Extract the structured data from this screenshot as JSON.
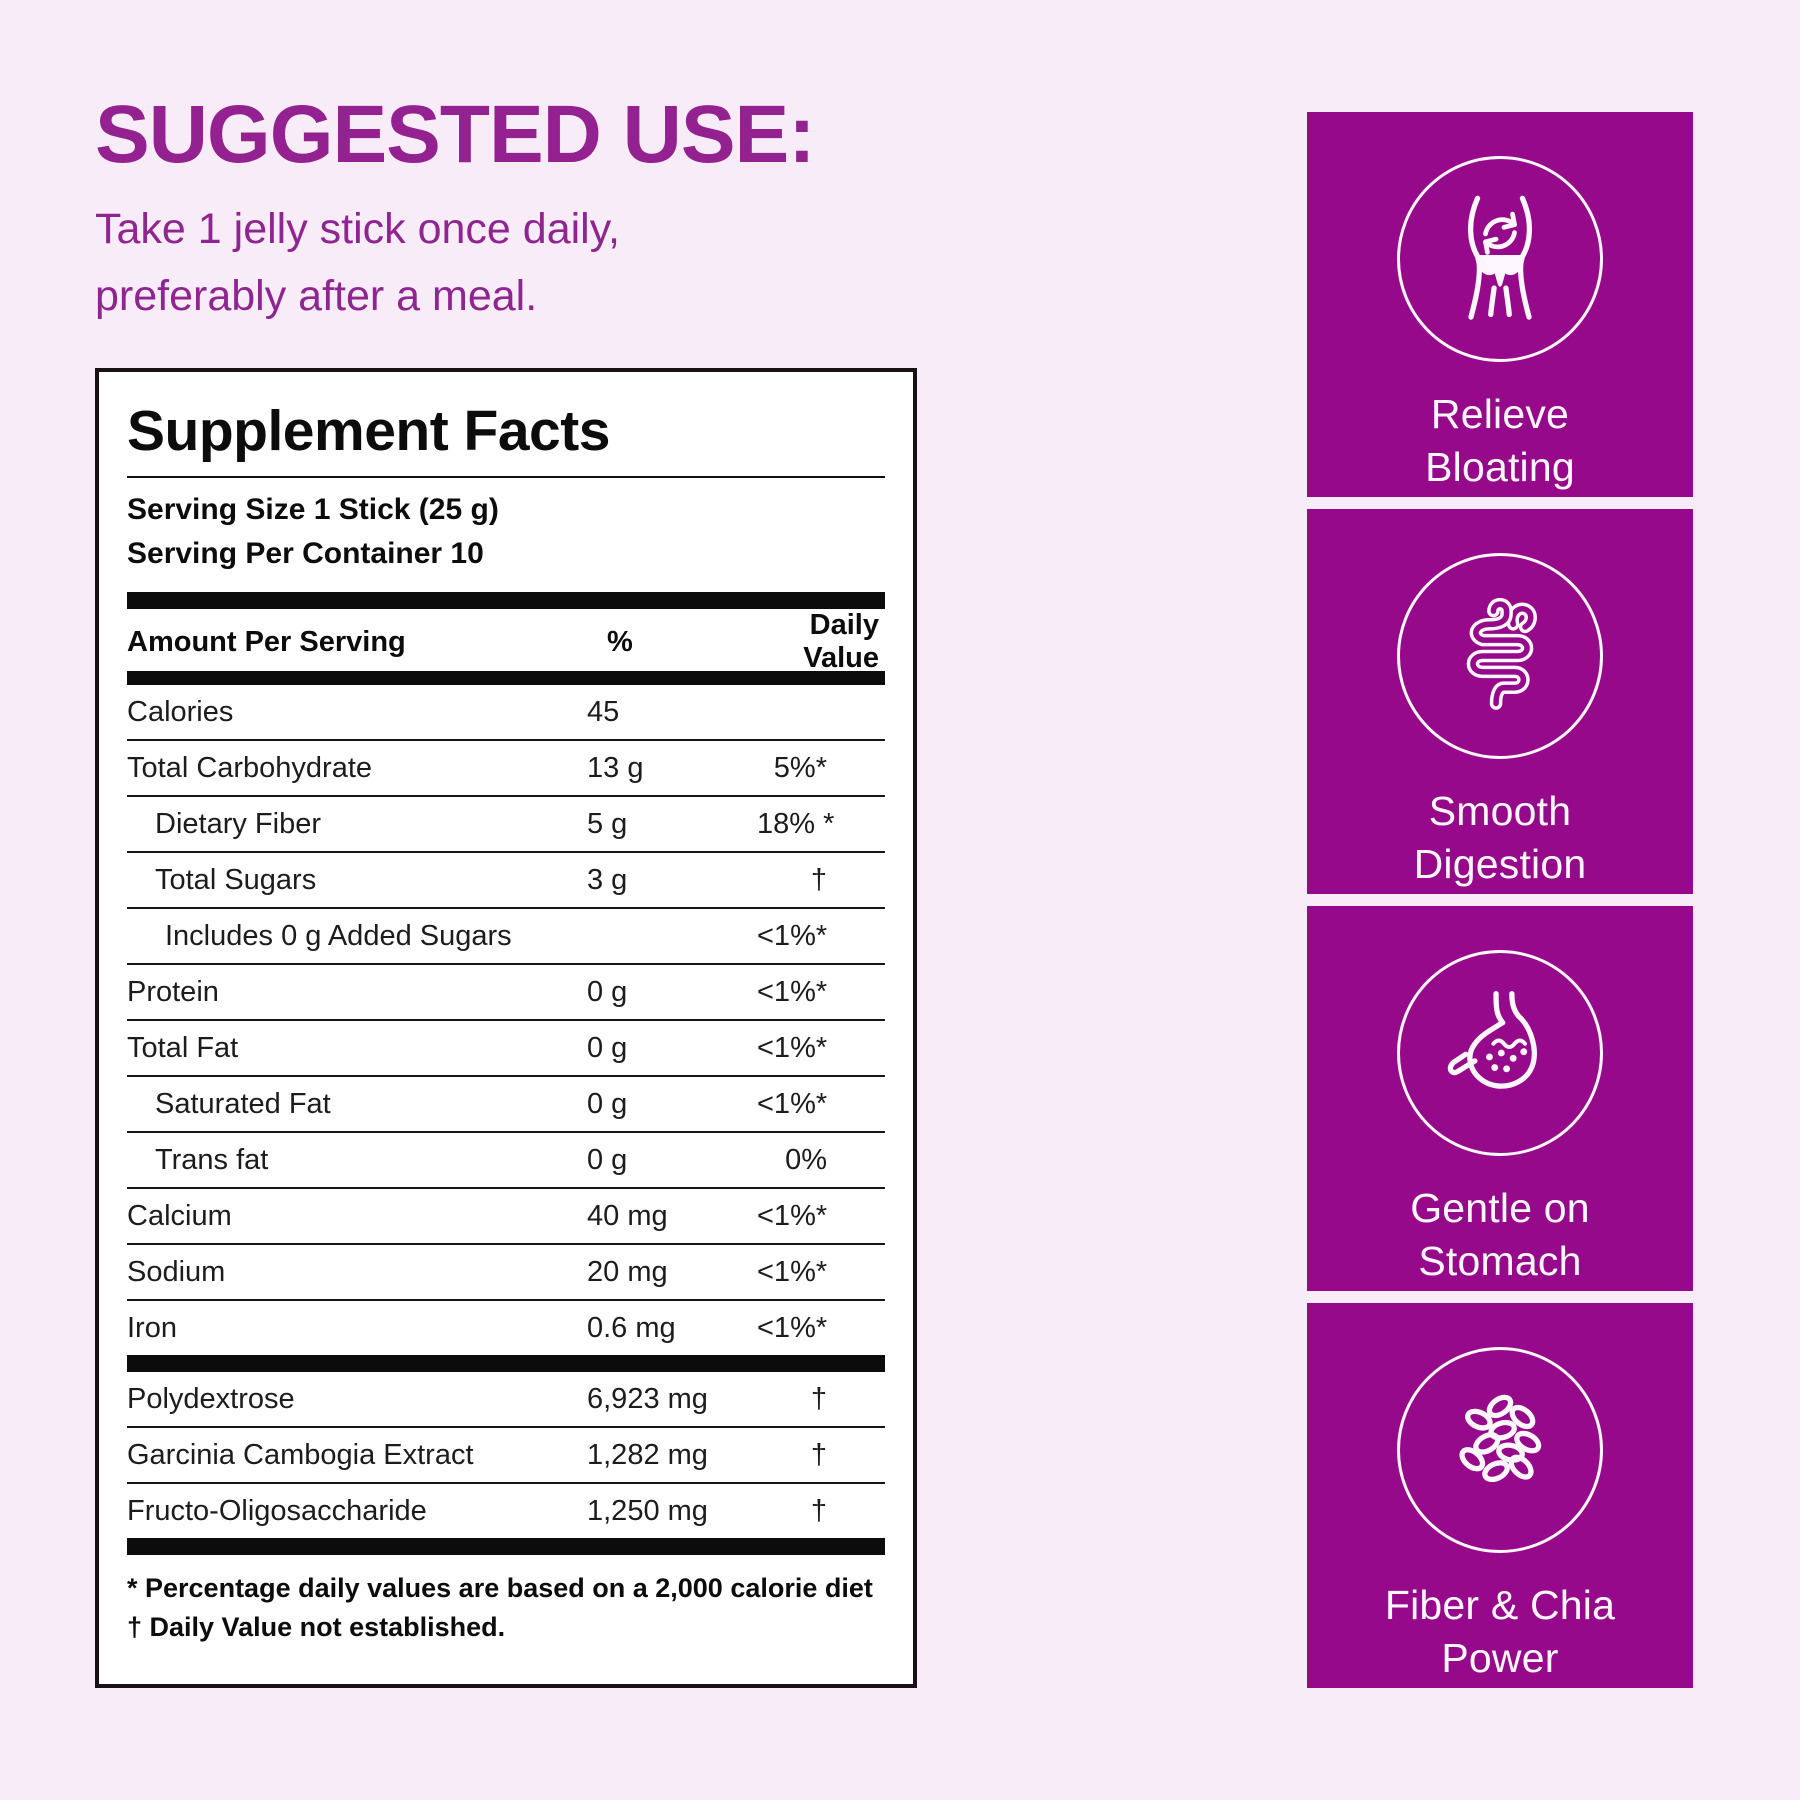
{
  "colors": {
    "background": "#f7ecf8",
    "accent_purple_text": "#93218f",
    "card_purple": "#95098a",
    "label_black": "#0c0c0c",
    "card_text_white": "#fdf7fd"
  },
  "suggested_use": {
    "heading": "SUGGESTED USE:",
    "body": "Take 1 jelly stick once daily,\npreferably after a meal."
  },
  "supplement_facts": {
    "title": "Supplement Facts",
    "serving_size": "Serving Size 1 Stick (25 g)",
    "servings_per_container": "Serving Per Container 10",
    "columns": {
      "amount": "Amount Per Serving",
      "percent": "%",
      "daily_value": "Daily Value"
    },
    "rows": [
      {
        "name": "Calories",
        "amount": "45",
        "dv": "",
        "indent": 0
      },
      {
        "name": "Total Carbohydrate",
        "amount": "13 g",
        "dv": "5%*",
        "indent": 0
      },
      {
        "name": "Dietary Fiber",
        "amount": "5 g",
        "dv": "18% *",
        "indent": 1
      },
      {
        "name": "Total Sugars",
        "amount": "3 g",
        "dv": "†",
        "indent": 1
      },
      {
        "name": "Includes 0 g Added Sugars",
        "amount": "",
        "dv": "<1%*",
        "indent": 2
      },
      {
        "name": "Protein",
        "amount": "0 g",
        "dv": "<1%*",
        "indent": 0
      },
      {
        "name": "Total Fat",
        "amount": "0 g",
        "dv": "<1%*",
        "indent": 0
      },
      {
        "name": "Saturated Fat",
        "amount": "0 g",
        "dv": "<1%*",
        "indent": 1
      },
      {
        "name": "Trans fat",
        "amount": "0 g",
        "dv": "0%",
        "indent": 1
      },
      {
        "name": "Calcium",
        "amount": "40 mg",
        "dv": "<1%*",
        "indent": 0
      },
      {
        "name": "Sodium",
        "amount": "20 mg",
        "dv": "<1%*",
        "indent": 0
      },
      {
        "name": "Iron",
        "amount": "0.6 mg",
        "dv": "<1%*",
        "indent": 0
      }
    ],
    "ingredient_rows": [
      {
        "name": "Polydextrose",
        "amount": "6,923 mg",
        "dv": "†",
        "indent": 0
      },
      {
        "name": "Garcinia Cambogia Extract",
        "amount": "1,282 mg",
        "dv": "†",
        "indent": 0
      },
      {
        "name": "Fructo-Oligosaccharide",
        "amount": "1,250 mg",
        "dv": "†",
        "indent": 0
      }
    ],
    "footnotes": [
      "* Percentage daily values are based on a 2,000 calorie diet",
      "† Daily Value not established."
    ]
  },
  "benefits": {
    "cards": [
      {
        "label": "Relieve\nBloating",
        "icon": "bloating-icon"
      },
      {
        "label": "Smooth\nDigestion",
        "icon": "intestine-icon"
      },
      {
        "label": "Gentle on\nStomach",
        "icon": "stomach-icon"
      },
      {
        "label": "Fiber & Chia\nPower",
        "icon": "chia-seeds-icon"
      }
    ]
  }
}
